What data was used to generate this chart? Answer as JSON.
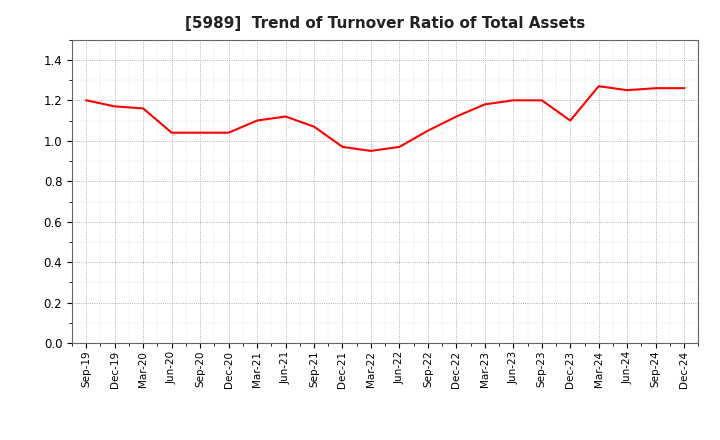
{
  "title": "[5989]  Trend of Turnover Ratio of Total Assets",
  "line_color": "#FF0000",
  "line_width": 1.5,
  "background_color": "#FFFFFF",
  "ylim": [
    0.0,
    1.5
  ],
  "yticks": [
    0.0,
    0.2,
    0.4,
    0.6,
    0.8,
    1.0,
    1.2,
    1.4
  ],
  "x_labels": [
    "Sep-19",
    "Dec-19",
    "Mar-20",
    "Jun-20",
    "Sep-20",
    "Dec-20",
    "Mar-21",
    "Jun-21",
    "Sep-21",
    "Dec-21",
    "Mar-22",
    "Jun-22",
    "Sep-22",
    "Dec-22",
    "Mar-23",
    "Jun-23",
    "Sep-23",
    "Dec-23",
    "Mar-24",
    "Jun-24",
    "Sep-24",
    "Dec-24"
  ],
  "values": [
    1.2,
    1.17,
    1.16,
    1.04,
    1.04,
    1.04,
    1.1,
    1.12,
    1.07,
    0.97,
    0.95,
    0.97,
    1.05,
    1.12,
    1.18,
    1.2,
    1.2,
    1.1,
    1.27,
    1.25,
    1.26,
    1.26
  ]
}
